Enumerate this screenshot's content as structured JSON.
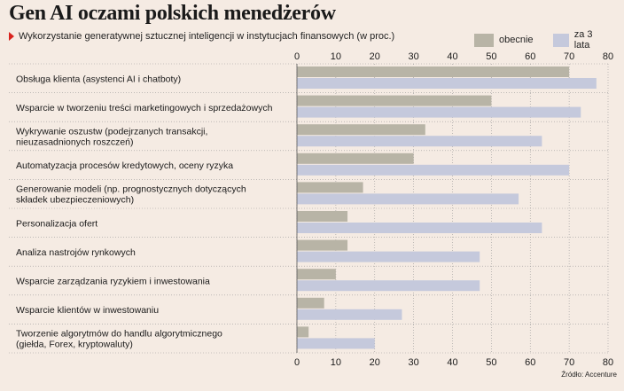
{
  "header": {
    "title": "Gen AI oczami polskich menedżerów",
    "subtitle": "Wykorzystanie generatywnej sztucznej inteligencji w instytucjach finansowych (w proc.)"
  },
  "source": "Źródło: Accenture",
  "chart_data": {
    "type": "bar",
    "orientation": "horizontal",
    "title": "Gen AI oczami polskich menedżerów",
    "subtitle": "Wykorzystanie generatywnej sztucznej inteligencji w instytucjach finansowych (w proc.)",
    "xlim": [
      0,
      80
    ],
    "xticks": [
      0,
      10,
      20,
      30,
      40,
      50,
      60,
      70,
      80
    ],
    "grid": true,
    "legend_position": "top-right",
    "categories": [
      [
        "Obsługa klienta (asystenci AI i chatboty)"
      ],
      [
        "Wsparcie w tworzeniu treści marketingowych i sprzedażowych"
      ],
      [
        "Wykrywanie oszustw (podejrzanych transakcji,",
        "nieuzasadnionych roszczeń)"
      ],
      [
        "Automatyzacja procesów kredytowych, oceny ryzyka"
      ],
      [
        "Generowanie modeli (np. prognostycznych dotyczących",
        "składek ubezpieczeniowych)"
      ],
      [
        "Personalizacja ofert"
      ],
      [
        "Analiza nastrojów rynkowych"
      ],
      [
        "Wsparcie zarządzania ryzykiem i inwestowania"
      ],
      [
        "Wsparcie klientów w inwestowaniu"
      ],
      [
        "Tworzenie algorytmów do handlu algorytmicznego",
        "(giełda, Forex, kryptowaluty)"
      ]
    ],
    "series": [
      {
        "name": "obecnie",
        "color": "#b8b4a6",
        "values": [
          70,
          50,
          33,
          30,
          17,
          13,
          13,
          10,
          7,
          3
        ]
      },
      {
        "name": "za 3 lata",
        "color": "#c5c9dc",
        "values": [
          77,
          73,
          63,
          70,
          57,
          63,
          47,
          47,
          27,
          20
        ]
      }
    ]
  }
}
